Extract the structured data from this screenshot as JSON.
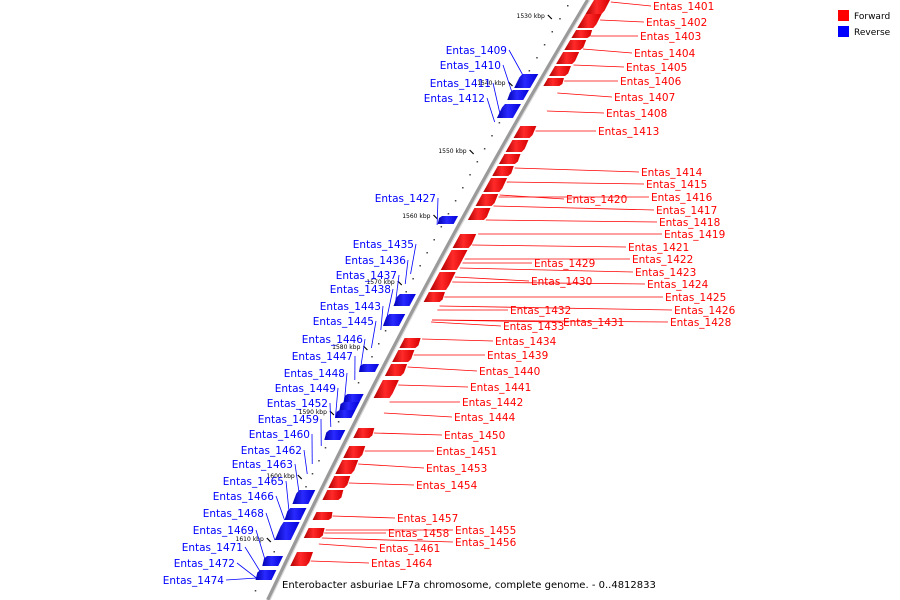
{
  "caption": "Enterobacter asburiae LF7a chromosome, complete genome. - 0..4812833",
  "legend": [
    {
      "label": "Forward",
      "color": "#ff0000"
    },
    {
      "label": "Reverse",
      "color": "#0000ff"
    }
  ],
  "ticks": [
    "1530 kbp",
    "1540 kbp",
    "1550 kbp",
    "1560 kbp",
    "1570 kbp",
    "1580 kbp",
    "1590 kbp",
    "1600 kbp",
    "1610 kbp"
  ],
  "forward_labels": [
    "Entas_1401",
    "Entas_1402",
    "Entas_1403",
    "Entas_1404",
    "Entas_1405",
    "Entas_1406",
    "Entas_1407",
    "Entas_1408",
    "Entas_1413",
    "Entas_1414",
    "Entas_1415",
    "Entas_1416",
    "Entas_1417",
    "Entas_1418",
    "Entas_1419",
    "Entas_1420",
    "Entas_1421",
    "Entas_1422",
    "Entas_1423",
    "Entas_1424",
    "Entas_1425",
    "Entas_1426",
    "Entas_1428",
    "Entas_1429",
    "Entas_1430",
    "Entas_1431",
    "Entas_1432",
    "Entas_1433",
    "Entas_1434",
    "Entas_1439",
    "Entas_1440",
    "Entas_1441",
    "Entas_1442",
    "Entas_1444",
    "Entas_1450",
    "Entas_1451",
    "Entas_1453",
    "Entas_1454",
    "Entas_1455",
    "Entas_1456",
    "Entas_1457",
    "Entas_1458",
    "Entas_1461",
    "Entas_1464"
  ],
  "reverse_labels": [
    "Entas_1409",
    "Entas_1410",
    "Entas_1411",
    "Entas_1412",
    "Entas_1427",
    "Entas_1435",
    "Entas_1436",
    "Entas_1437",
    "Entas_1438",
    "Entas_1443",
    "Entas_1445",
    "Entas_1446",
    "Entas_1447",
    "Entas_1448",
    "Entas_1449",
    "Entas_1452",
    "Entas_1459",
    "Entas_1460",
    "Entas_1462",
    "Entas_1463",
    "Entas_1465",
    "Entas_1466",
    "Entas_1468",
    "Entas_1469",
    "Entas_1471",
    "Entas_1472",
    "Entas_1474"
  ],
  "colors": {
    "forward": "#ff0000",
    "reverse": "#0000ff",
    "backbone": "#999999"
  }
}
